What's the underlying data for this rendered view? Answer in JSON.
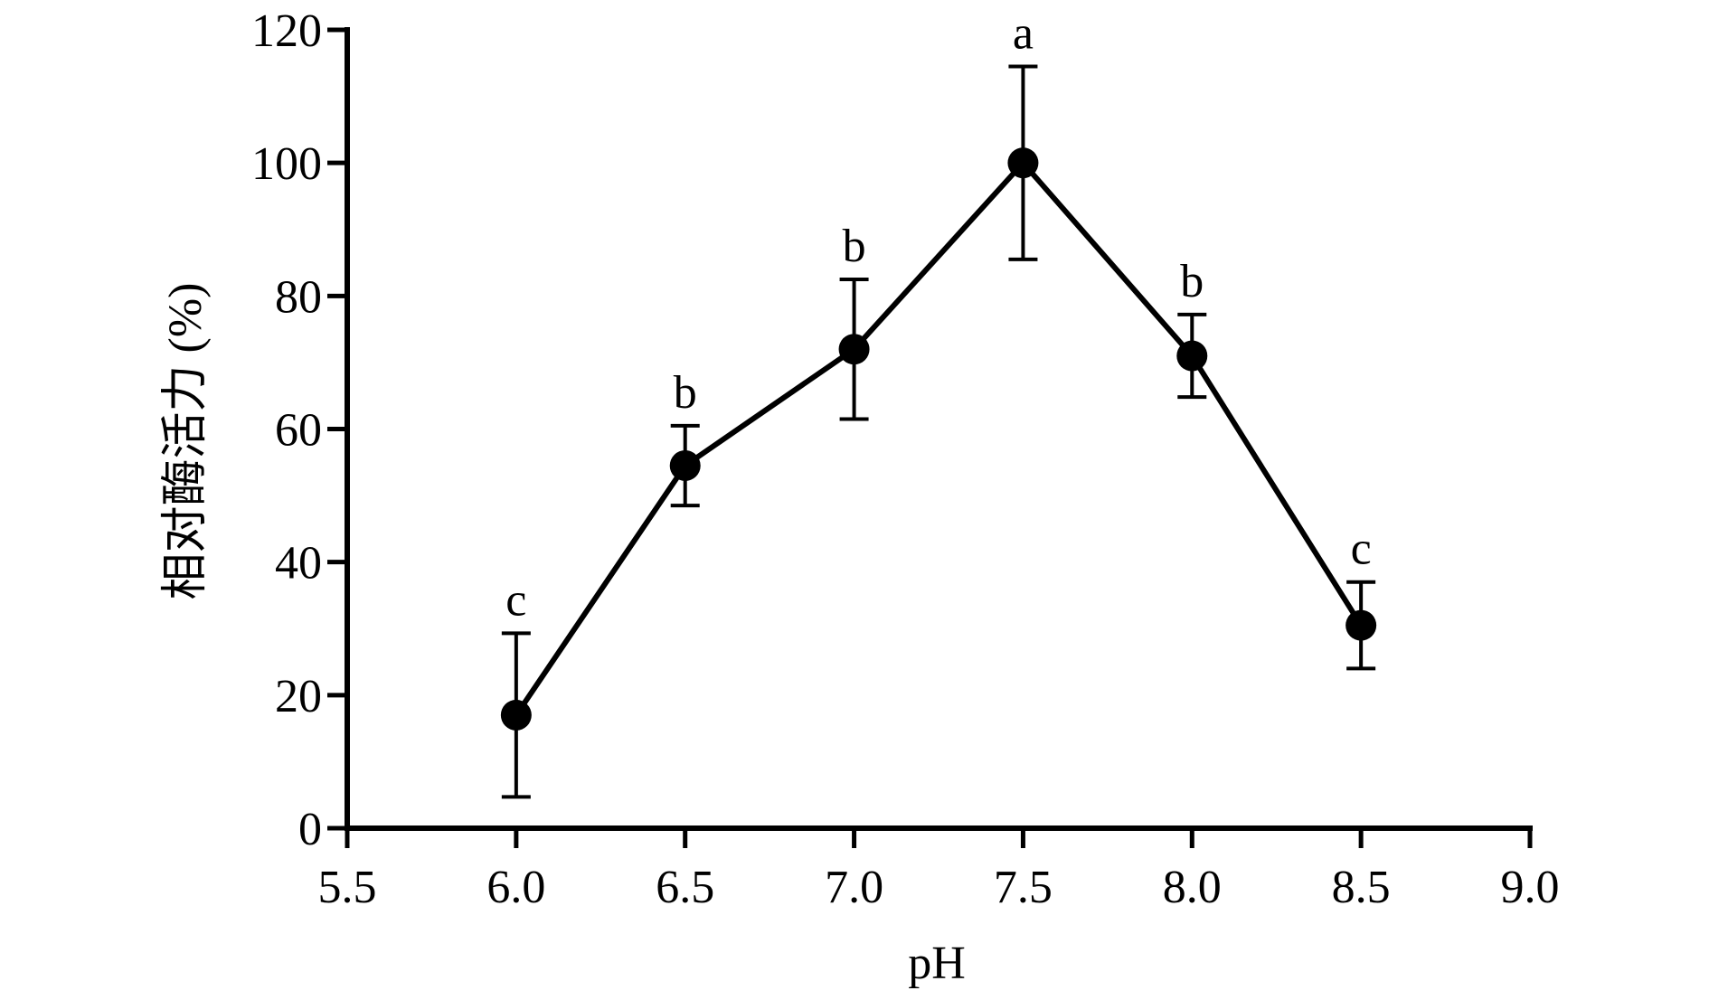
{
  "chart_data": {
    "type": "line",
    "title": "",
    "xlabel": "pH",
    "ylabel": "相对酶活力 (%)",
    "xlim": [
      5.5,
      9.0
    ],
    "ylim": [
      0,
      120
    ],
    "x_ticks": [
      5.5,
      6.0,
      6.5,
      7.0,
      7.5,
      8.0,
      8.5,
      9.0
    ],
    "x_tick_labels": [
      "5.5",
      "6.0",
      "6.5",
      "7.0",
      "7.5",
      "8.0",
      "8.5",
      "9.0"
    ],
    "y_ticks": [
      0,
      20,
      40,
      60,
      80,
      100,
      120
    ],
    "y_tick_labels": [
      "0",
      "20",
      "40",
      "60",
      "80",
      "100",
      "120"
    ],
    "grid": false,
    "legend": "none",
    "series": [
      {
        "x": [
          6.0,
          6.5,
          7.0,
          7.5,
          8.0,
          8.5
        ],
        "y": [
          17,
          54.5,
          72,
          100,
          71,
          30.5
        ],
        "error": [
          12.3,
          6.0,
          10.5,
          14.5,
          6.2,
          6.5
        ],
        "significance": [
          "c",
          "b",
          "b",
          "a",
          "b",
          "c"
        ],
        "color": "#000000",
        "marker": "circle"
      }
    ]
  }
}
